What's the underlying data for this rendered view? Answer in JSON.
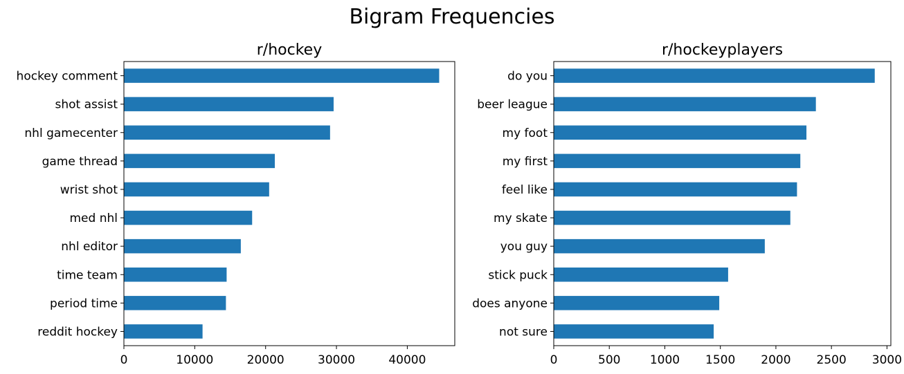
{
  "figure": {
    "title": "Bigram Frequencies"
  },
  "chart_data": [
    {
      "type": "bar",
      "orientation": "horizontal",
      "title": "r/hockey",
      "xlabel": "",
      "ylabel": "",
      "bar_color": "#1f77b4",
      "categories": [
        "hockey comment",
        "shot assist",
        "nhl gamecenter",
        "game thread",
        "wrist shot",
        "med nhl",
        "nhl editor",
        "time team",
        "period time",
        "reddit hockey"
      ],
      "values": [
        44500,
        29600,
        29100,
        21300,
        20500,
        18100,
        16500,
        14500,
        14400,
        11100
      ],
      "xlim": [
        0,
        46700
      ],
      "xticks": [
        0,
        10000,
        20000,
        30000,
        40000
      ],
      "xtick_labels": [
        "0",
        "10000",
        "20000",
        "30000",
        "40000"
      ],
      "grid": false,
      "legend": null
    },
    {
      "type": "bar",
      "orientation": "horizontal",
      "title": "r/hockeyplayers",
      "xlabel": "",
      "ylabel": "",
      "bar_color": "#1f77b4",
      "categories": [
        "do you",
        "beer league",
        "my foot",
        "my first",
        "feel like",
        "my skate",
        "you guy",
        "stick puck",
        "does anyone",
        "not sure"
      ],
      "values": [
        2890,
        2360,
        2275,
        2220,
        2190,
        2130,
        1900,
        1570,
        1490,
        1440
      ],
      "xlim": [
        0,
        3035
      ],
      "xticks": [
        0,
        500,
        1000,
        1500,
        2000,
        2500,
        3000
      ],
      "xtick_labels": [
        "0",
        "500",
        "1000",
        "1500",
        "2000",
        "2500",
        "3000"
      ],
      "grid": false,
      "legend": null
    }
  ]
}
